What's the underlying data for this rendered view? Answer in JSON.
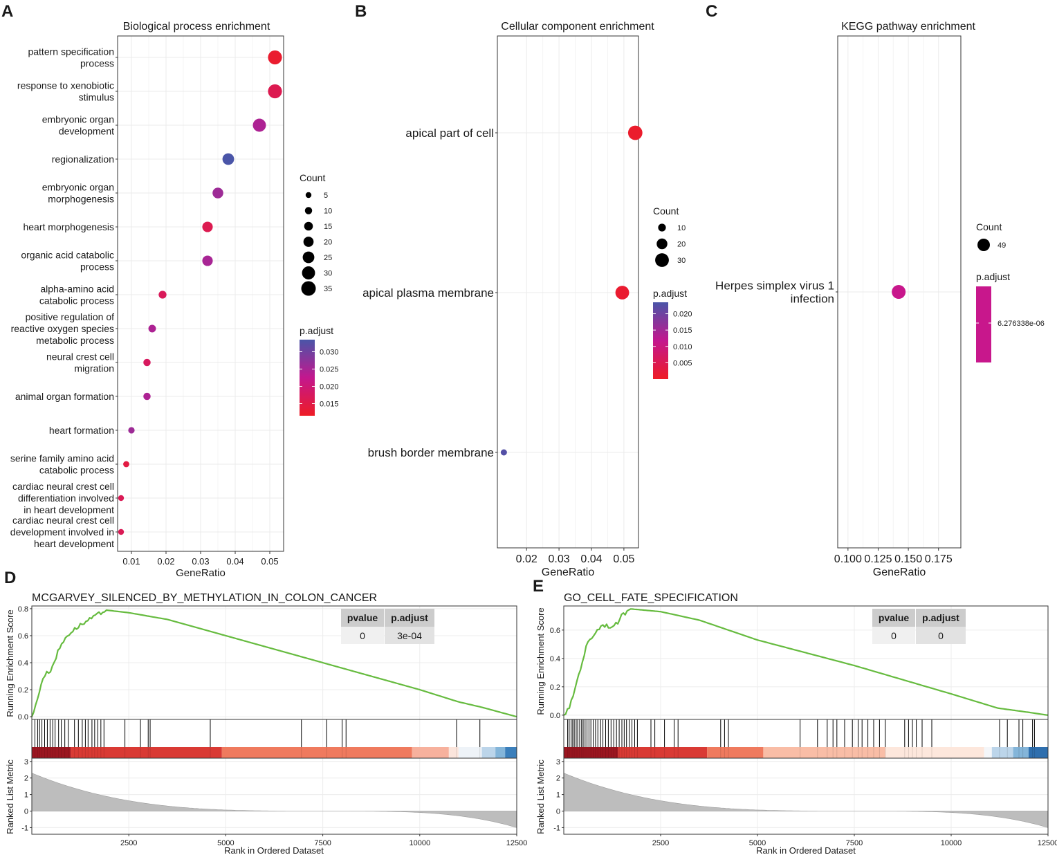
{
  "chart_data": [
    {
      "type": "scatter",
      "panel_label": "A",
      "title": "Biological process enrichment",
      "xlabel": "GeneRatio",
      "xlim": [
        0.006,
        0.054
      ],
      "xticks": [
        "0.01",
        "0.02",
        "0.03",
        "0.04",
        "0.05"
      ],
      "xtick_values": [
        0.01,
        0.02,
        0.03,
        0.04,
        0.05
      ],
      "points": [
        {
          "label": [
            "pattern specification",
            "process"
          ],
          "x": 0.0515,
          "count": 33,
          "padj": 0.0125
        },
        {
          "label": [
            "response to xenobiotic",
            "stimulus"
          ],
          "x": 0.0515,
          "count": 33,
          "padj": 0.016
        },
        {
          "label": [
            "embryonic organ",
            "development"
          ],
          "x": 0.047,
          "count": 30,
          "padj": 0.0245
        },
        {
          "label": [
            "regionalization"
          ],
          "x": 0.038,
          "count": 25,
          "padj": 0.0335
        },
        {
          "label": [
            "embryonic organ",
            "morphogenesis"
          ],
          "x": 0.035,
          "count": 22,
          "padj": 0.026
        },
        {
          "label": [
            "heart morphogenesis"
          ],
          "x": 0.032,
          "count": 21,
          "padj": 0.016
        },
        {
          "label": [
            "organic acid catabolic",
            "process"
          ],
          "x": 0.032,
          "count": 21,
          "padj": 0.025
        },
        {
          "label": [
            "alpha-amino acid",
            "catabolic process"
          ],
          "x": 0.019,
          "count": 12,
          "padj": 0.017
        },
        {
          "label": [
            "positive regulation of",
            "reactive oxygen species",
            "metabolic process"
          ],
          "x": 0.016,
          "count": 11,
          "padj": 0.0245
        },
        {
          "label": [
            "neural crest cell",
            "migration"
          ],
          "x": 0.0145,
          "count": 10,
          "padj": 0.0175
        },
        {
          "label": [
            "animal organ formation"
          ],
          "x": 0.0145,
          "count": 10,
          "padj": 0.0245
        },
        {
          "label": [
            "heart formation"
          ],
          "x": 0.01,
          "count": 7,
          "padj": 0.026
        },
        {
          "label": [
            "serine family amino acid",
            "catabolic process"
          ],
          "x": 0.0085,
          "count": 6,
          "padj": 0.0145
        },
        {
          "label": [
            "cardiac neural crest cell",
            "differentiation involved",
            "in heart development"
          ],
          "x": 0.007,
          "count": 5,
          "padj": 0.0165
        },
        {
          "label": [
            "cardiac neural crest cell",
            "development involved in",
            "heart development"
          ],
          "x": 0.007,
          "count": 5,
          "padj": 0.0165
        }
      ],
      "legend": {
        "count_title": "Count",
        "count_values": [
          "5",
          "10",
          "15",
          "20",
          "25",
          "30",
          "35"
        ],
        "padj_title": "p.adjust",
        "padj_ticks": [
          "0.030",
          "0.025",
          "0.020",
          "0.015"
        ],
        "padj_range": [
          0.0115,
          0.0335
        ]
      }
    },
    {
      "type": "scatter",
      "panel_label": "B",
      "title": "Cellular component enrichment",
      "xlabel": "GeneRatio",
      "xlim": [
        0.011,
        0.0545
      ],
      "xticks": [
        "0.02",
        "0.03",
        "0.04",
        "0.05"
      ],
      "xtick_values": [
        0.02,
        0.03,
        0.04,
        0.05
      ],
      "points": [
        {
          "label": [
            "apical part of cell"
          ],
          "x": 0.0535,
          "count": 32,
          "padj": 0.0008
        },
        {
          "label": [
            "apical plasma membrane"
          ],
          "x": 0.0495,
          "count": 30,
          "padj": 0.0012
        },
        {
          "label": [
            "brush border membrane"
          ],
          "x": 0.013,
          "count": 5,
          "padj": 0.0225
        }
      ],
      "legend": {
        "count_title": "Count",
        "count_values": [
          "10",
          "20",
          "30"
        ],
        "padj_title": "p.adjust",
        "padj_ticks": [
          "0.020",
          "0.015",
          "0.010",
          "0.005"
        ],
        "padj_range": [
          0.0,
          0.0235
        ]
      }
    },
    {
      "type": "scatter",
      "panel_label": "C",
      "title": "KEGG pathway enrichment",
      "xlabel": "GeneRatio",
      "xlim": [
        0.0915,
        0.1935
      ],
      "xticks": [
        "0.100",
        "0.125",
        "0.150",
        "0.175"
      ],
      "xtick_values": [
        0.1,
        0.125,
        0.15,
        0.175
      ],
      "points": [
        {
          "label": [
            "Herpes simplex virus 1",
            "infection"
          ],
          "x": 0.142,
          "count": 49,
          "padj": 6.276338e-06
        }
      ],
      "legend": {
        "count_title": "Count",
        "count_values": [
          "49"
        ],
        "padj_title": "p.adjust",
        "padj_ticks": [
          "6.276338e-06"
        ],
        "padj_color": "#c8178c"
      }
    },
    {
      "type": "line",
      "panel_label": "D",
      "title": "MCGARVEY_SILENCED_BY_METHYLATION_IN_COLON_CANCER",
      "ylabel_top": "Running Enrichment Score",
      "ylabel_bottom": "Ranked List Metric",
      "xlabel": "Rank in Ordered Dataset",
      "xlim": [
        0,
        12500
      ],
      "xticks": [
        "2500",
        "5000",
        "7500",
        "10000",
        "12500"
      ],
      "xtick_values": [
        2500,
        5000,
        7500,
        10000,
        12500
      ],
      "es_ylim": [
        -0.02,
        0.82
      ],
      "es_yticks": [
        "0.0",
        "0.2",
        "0.4",
        "0.6",
        "0.8"
      ],
      "es_ytick_values": [
        0.0,
        0.2,
        0.4,
        0.6,
        0.8
      ],
      "metric_ylim": [
        -1.4,
        3.2
      ],
      "metric_yticks": [
        "-1",
        "0",
        "1",
        "2",
        "3"
      ],
      "metric_ytick_values": [
        -1,
        0,
        1,
        2,
        3
      ],
      "peak_rank": 1900,
      "peak_es": 0.79,
      "es_points": [
        [
          0,
          0.0
        ],
        [
          100,
          0.08
        ],
        [
          200,
          0.2
        ],
        [
          300,
          0.3
        ],
        [
          500,
          0.35
        ],
        [
          700,
          0.5
        ],
        [
          900,
          0.6
        ],
        [
          1200,
          0.67
        ],
        [
          1500,
          0.72
        ],
        [
          1900,
          0.79
        ],
        [
          2500,
          0.77
        ],
        [
          3500,
          0.72
        ],
        [
          5000,
          0.6
        ],
        [
          7500,
          0.4
        ],
        [
          10000,
          0.2
        ],
        [
          11000,
          0.11
        ],
        [
          11600,
          0.07
        ],
        [
          12500,
          0.0
        ]
      ],
      "hits": [
        80,
        150,
        200,
        260,
        330,
        400,
        470,
        540,
        600,
        690,
        760,
        850,
        940,
        1100,
        1200,
        1300,
        1380,
        1450,
        1550,
        1620,
        1700,
        1780,
        1860,
        2400,
        2800,
        3000,
        3050,
        4600,
        6950,
        7600,
        8000,
        8100,
        10950,
        11550
      ],
      "metric_start": 2.3,
      "metric_end": -1.0,
      "metric_zero_rank": 7500,
      "color_band": [
        {
          "from": 0,
          "to": 1000,
          "color": "#9b1620"
        },
        {
          "from": 1000,
          "to": 4900,
          "color": "#d93a34"
        },
        {
          "from": 4900,
          "to": 9800,
          "color": "#ef7a5e"
        },
        {
          "from": 9800,
          "to": 10750,
          "color": "#f7b19d"
        },
        {
          "from": 10750,
          "to": 11000,
          "color": "#fbe5dc"
        },
        {
          "from": 11000,
          "to": 11600,
          "color": "#eef3f8"
        },
        {
          "from": 11600,
          "to": 11950,
          "color": "#bcd5ea"
        },
        {
          "from": 11950,
          "to": 12200,
          "color": "#84b5d9"
        },
        {
          "from": 12200,
          "to": 12500,
          "color": "#3b7fbb"
        }
      ],
      "table": {
        "headers": [
          "pvalue",
          "p.adjust"
        ],
        "values": [
          "0",
          "3e-04"
        ]
      },
      "line_color": "#66bb3f"
    },
    {
      "type": "line",
      "panel_label": "E",
      "title": "GO_CELL_FATE_SPECIFICATION",
      "ylabel_top": "Running Enrichment Score",
      "ylabel_bottom": "Ranked List Metric",
      "xlabel": "Rank in Ordered Dataset",
      "xlim": [
        0,
        12500
      ],
      "xticks": [
        "2500",
        "5000",
        "7500",
        "10000",
        "12500"
      ],
      "xtick_values": [
        2500,
        5000,
        7500,
        10000,
        12500
      ],
      "es_ylim": [
        -0.03,
        0.77
      ],
      "es_yticks": [
        "0.0",
        "0.2",
        "0.4",
        "0.6"
      ],
      "es_ytick_values": [
        0.0,
        0.2,
        0.4,
        0.6
      ],
      "metric_ylim": [
        -1.4,
        3.2
      ],
      "metric_yticks": [
        "-1",
        "0",
        "1",
        "2",
        "3"
      ],
      "metric_ytick_values": [
        -1,
        0,
        1,
        2,
        3
      ],
      "peak_rank": 1700,
      "peak_es": 0.75,
      "es_points": [
        [
          0,
          0.0
        ],
        [
          150,
          0.05
        ],
        [
          300,
          0.2
        ],
        [
          450,
          0.35
        ],
        [
          600,
          0.5
        ],
        [
          800,
          0.58
        ],
        [
          1000,
          0.64
        ],
        [
          1300,
          0.62
        ],
        [
          1500,
          0.7
        ],
        [
          1700,
          0.75
        ],
        [
          2500,
          0.73
        ],
        [
          3500,
          0.67
        ],
        [
          5000,
          0.53
        ],
        [
          7500,
          0.35
        ],
        [
          10000,
          0.15
        ],
        [
          11200,
          0.05
        ],
        [
          12000,
          0.02
        ],
        [
          12500,
          0.0
        ]
      ],
      "hits": [
        100,
        140,
        190,
        230,
        270,
        320,
        360,
        410,
        460,
        500,
        550,
        600,
        650,
        700,
        760,
        820,
        880,
        950,
        1010,
        1080,
        1150,
        1220,
        1290,
        1360,
        1430,
        1500,
        1560,
        1620,
        1690,
        1760,
        1830,
        1900,
        2250,
        2350,
        2600,
        2850,
        2950,
        4050,
        4150,
        4250,
        6100,
        6550,
        6800,
        6950,
        7050,
        7250,
        7450,
        7600,
        7700,
        7850,
        8000,
        8150,
        8300,
        8800,
        8900,
        9000,
        9100,
        9250,
        9500,
        11250,
        11450,
        11750,
        11850,
        12100,
        12150
      ],
      "metric_start": 2.3,
      "metric_end": -1.0,
      "metric_zero_rank": 7500,
      "color_band": [
        {
          "from": 0,
          "to": 1400,
          "color": "#9b1620"
        },
        {
          "from": 1400,
          "to": 3700,
          "color": "#d93a34"
        },
        {
          "from": 3700,
          "to": 5150,
          "color": "#ef7a5e"
        },
        {
          "from": 5150,
          "to": 8300,
          "color": "#f9bda6"
        },
        {
          "from": 8300,
          "to": 10850,
          "color": "#fde7dc"
        },
        {
          "from": 10850,
          "to": 11050,
          "color": "#f4f6f9"
        },
        {
          "from": 11050,
          "to": 11600,
          "color": "#bcd5ea"
        },
        {
          "from": 11600,
          "to": 12000,
          "color": "#84b5d9"
        },
        {
          "from": 12000,
          "to": 12500,
          "color": "#2f6fae"
        }
      ],
      "table": {
        "headers": [
          "pvalue",
          "p.adjust"
        ],
        "values": [
          "0",
          "0"
        ]
      },
      "line_color": "#66bb3f"
    }
  ]
}
